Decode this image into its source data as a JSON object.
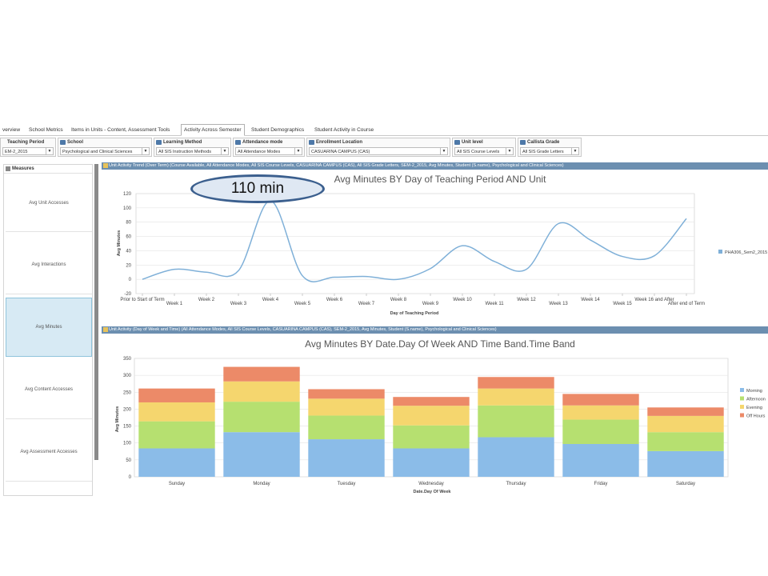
{
  "tabs": [
    {
      "label": "verview"
    },
    {
      "label": "School Metrics"
    },
    {
      "label": "Items in Units - Content, Assessment Tools"
    },
    {
      "label": "Activity Across Semester"
    },
    {
      "label": "Student Demographics"
    },
    {
      "label": "Student Activity in Course"
    }
  ],
  "filters": [
    {
      "label": "Teaching Period",
      "value": "EM-2_2015"
    },
    {
      "label": "School",
      "value": "Psychological and Clinical Sciences"
    },
    {
      "label": "Learning Method",
      "value": "All SIS Instruction Methods"
    },
    {
      "label": "Attendance mode",
      "value": "All Attendance Modes"
    },
    {
      "label": "Enrollment Location",
      "value": "CASUARINA CAMPUS (CAS)"
    },
    {
      "label": "Unit level",
      "value": "All SIS Course Levels"
    },
    {
      "label": "Callista Grade",
      "value": "All SIS Grade Letters"
    }
  ],
  "measures": {
    "title": "Measures",
    "items": [
      {
        "label": "Avg Unit Accesses"
      },
      {
        "label": "Avg Interactions"
      },
      {
        "label": "Avg Minutes"
      },
      {
        "label": "Avg Content Accesses"
      },
      {
        "label": "Avg Assessment Accesses"
      }
    ]
  },
  "callout": {
    "text": "110 min"
  },
  "chart1": {
    "panel_title": "Unit Activity Trend (Over Term)  (Course Available, All Attendance Modes, All SIS Course Levels, CASUARINA CAMPUS (CAS), All SIS Grade Letters, SEM-2_2015, Avg Minutes, Student (S.name), Psychological and Clinical Sciences)"
  },
  "chart2": {
    "panel_title": "Unit Activity (Day of Week and Time)  (All Attendance Modes, All SIS Course Levels, CASUARINA CAMPUS (CAS), SEM-2_2015, Avg Minutes, Student (S.name), Psychological and Clinical Sciences)"
  },
  "chart_data": [
    {
      "type": "line",
      "title": "Avg Minutes BY Day of Teaching Period AND Unit",
      "xlabel": "Day of Teaching Period",
      "ylabel": "Avg Minutes",
      "ylim": [
        -20,
        120
      ],
      "yticks": [
        -20,
        0,
        20,
        40,
        60,
        80,
        100,
        120
      ],
      "grid": true,
      "legend_position": "right",
      "color": "#7fb0d8",
      "categories": [
        "Prior to Start of Term",
        "Week 1",
        "Week 2",
        "Week 3",
        "Week 4",
        "Week 5",
        "Week 6",
        "Week 7",
        "Week 8",
        "Week 9",
        "Week 10",
        "Week 11",
        "Week 12",
        "Week 13",
        "Week 14",
        "Week 15",
        "Week 16 and After",
        "After end of Term"
      ],
      "series": [
        {
          "name": "PHA306_Sem2_2015",
          "values": [
            0,
            14,
            10,
            12,
            110,
            5,
            3,
            4,
            0,
            15,
            47,
            25,
            14,
            78,
            55,
            32,
            33,
            85
          ]
        }
      ]
    },
    {
      "type": "bar",
      "stacked": true,
      "title": "Avg Minutes BY Date.Day Of Week AND Time Band.Time Band",
      "xlabel": "Date.Day Of Week",
      "ylabel": "Avg Minutes",
      "ylim": [
        0,
        350
      ],
      "yticks": [
        0,
        50,
        100,
        150,
        200,
        250,
        300,
        350
      ],
      "grid": true,
      "legend_position": "right",
      "categories": [
        "Sunday",
        "Monday",
        "Tuesday",
        "Wednesday",
        "Thursday",
        "Friday",
        "Saturday"
      ],
      "series": [
        {
          "name": "Morning",
          "color": "#8bbce8",
          "values": [
            84,
            132,
            111,
            84,
            117,
            97,
            76
          ]
        },
        {
          "name": "Afternoon",
          "color": "#b6e070",
          "values": [
            80,
            90,
            70,
            68,
            94,
            72,
            56
          ]
        },
        {
          "name": "Evening",
          "color": "#f5d66e",
          "values": [
            56,
            60,
            50,
            58,
            50,
            42,
            48
          ]
        },
        {
          "name": "Off Hours",
          "color": "#ec8a68",
          "values": [
            41,
            43,
            28,
            26,
            34,
            34,
            25
          ]
        }
      ]
    }
  ]
}
